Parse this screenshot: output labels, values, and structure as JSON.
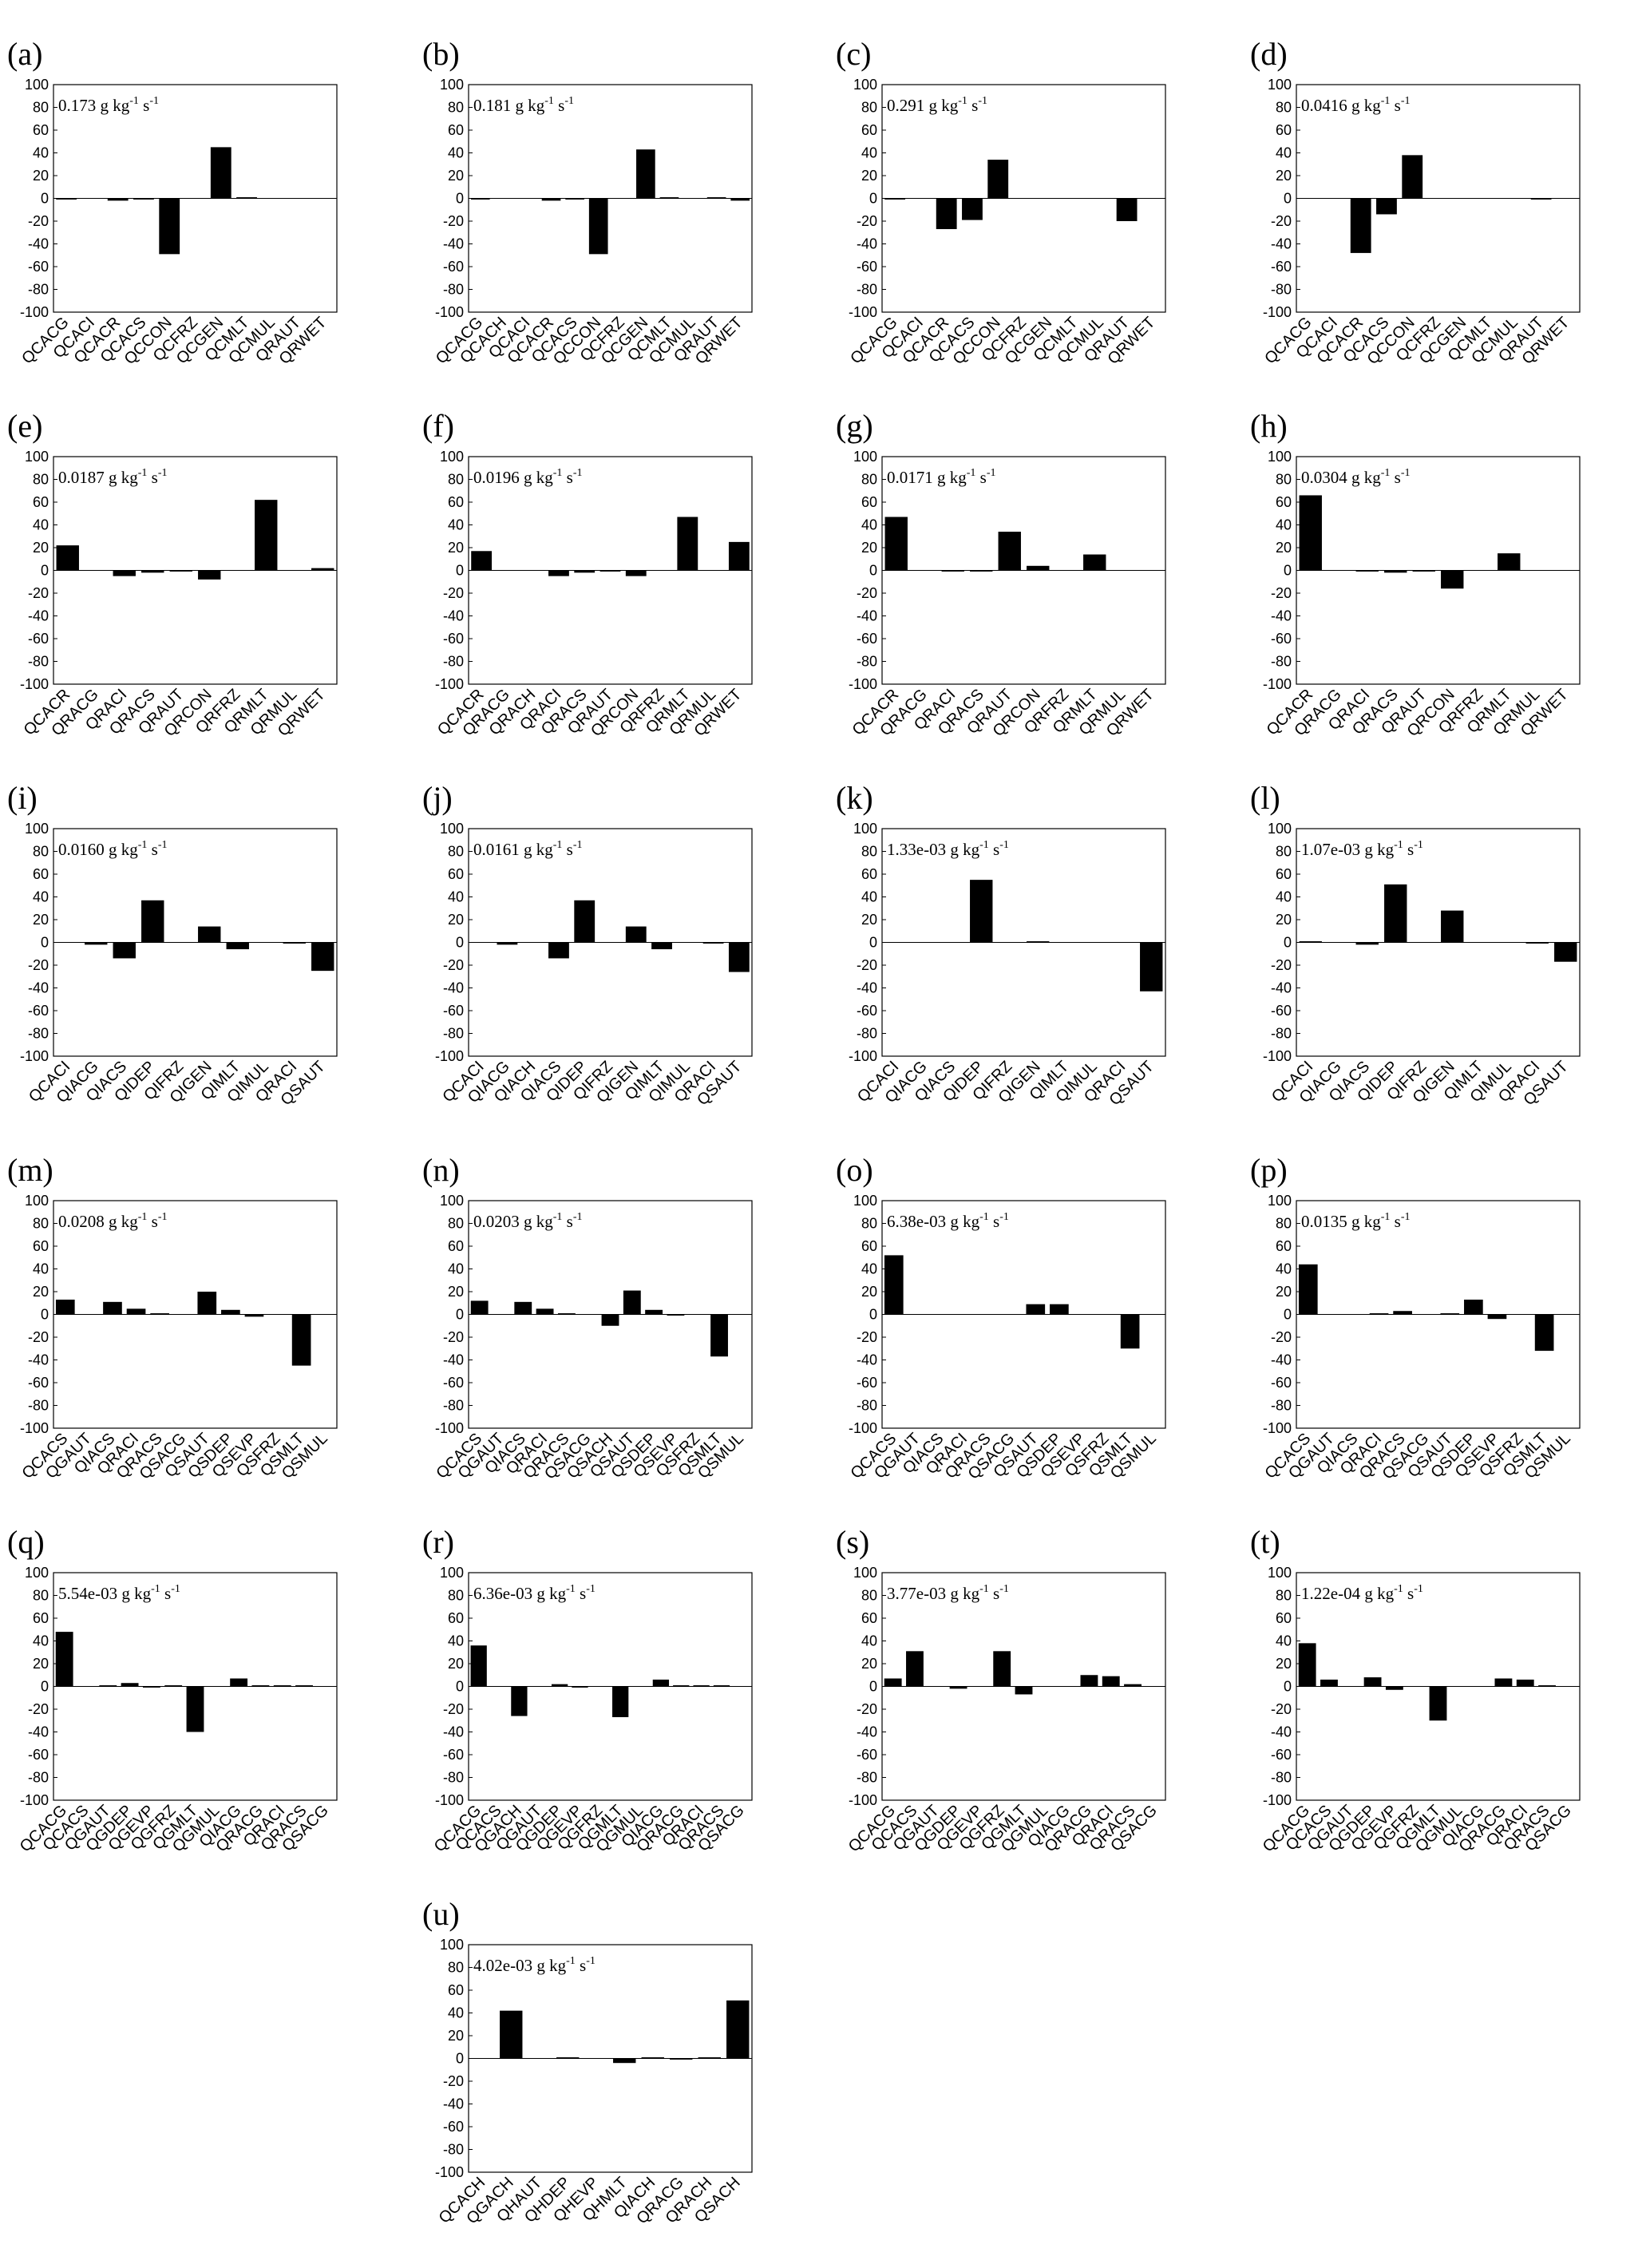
{
  "chart_data": [
    {
      "type": "bar",
      "panel": "(a)",
      "annotation": "0.173 g kg",
      "annotation_unit": "-1",
      "annotation_s": " s",
      "annotation_s_unit": "-1",
      "ylim": [
        -100,
        100
      ],
      "yticks": [
        100,
        80,
        60,
        40,
        20,
        0,
        -20,
        -40,
        -60,
        -80,
        -100
      ],
      "categories": [
        "QCACG",
        "QCACI",
        "QCACR",
        "QCACS",
        "QCCON",
        "QCFRZ",
        "QCGEN",
        "QCMLT",
        "QCMUL",
        "QRAUT",
        "QRWET"
      ],
      "values": [
        -1,
        0,
        -2,
        -1,
        -49,
        0,
        45,
        1,
        0,
        0,
        0
      ]
    },
    {
      "type": "bar",
      "panel": "(b)",
      "annotation": "0.181 g kg",
      "annotation_unit": "-1",
      "annotation_s": " s",
      "annotation_s_unit": "-1",
      "ylim": [
        -100,
        100
      ],
      "yticks": [
        100,
        80,
        60,
        40,
        20,
        0,
        -20,
        -40,
        -60,
        -80,
        -100
      ],
      "categories": [
        "QCACG",
        "QCACH",
        "QCACI",
        "QCACR",
        "QCACS",
        "QCCON",
        "QCFRZ",
        "QCGEN",
        "QCMLT",
        "QCMUL",
        "QRAUT",
        "QRWET"
      ],
      "values": [
        -1,
        0,
        0,
        -2,
        -1,
        -49,
        0,
        43,
        1,
        0,
        1,
        -2
      ]
    },
    {
      "type": "bar",
      "panel": "(c)",
      "annotation": "0.291 g kg",
      "annotation_unit": "-1",
      "annotation_s": " s",
      "annotation_s_unit": "-1",
      "ylim": [
        -100,
        100
      ],
      "yticks": [
        100,
        80,
        60,
        40,
        20,
        0,
        -20,
        -40,
        -60,
        -80,
        -100
      ],
      "categories": [
        "QCACG",
        "QCACI",
        "QCACR",
        "QCACS",
        "QCCON",
        "QCFRZ",
        "QCGEN",
        "QCMLT",
        "QCMUL",
        "QRAUT",
        "QRWET"
      ],
      "values": [
        -1,
        0,
        -27,
        -19,
        34,
        0,
        0,
        0,
        0,
        -20,
        0
      ]
    },
    {
      "type": "bar",
      "panel": "(d)",
      "annotation": "0.0416 g kg",
      "annotation_unit": "-1",
      "annotation_s": " s",
      "annotation_s_unit": "-1",
      "ylim": [
        -100,
        100
      ],
      "yticks": [
        100,
        80,
        60,
        40,
        20,
        0,
        -20,
        -40,
        -60,
        -80,
        -100
      ],
      "categories": [
        "QCACG",
        "QCACI",
        "QCACR",
        "QCACS",
        "QCCON",
        "QCFRZ",
        "QCGEN",
        "QCMLT",
        "QCMUL",
        "QRAUT",
        "QRWET"
      ],
      "values": [
        0,
        0,
        -48,
        -14,
        38,
        0,
        0,
        0,
        0,
        -1,
        0
      ]
    },
    {
      "type": "bar",
      "panel": "(e)",
      "annotation": "0.0187 g kg",
      "annotation_unit": "-1",
      "annotation_s": " s",
      "annotation_s_unit": "-1",
      "ylim": [
        -100,
        100
      ],
      "yticks": [
        100,
        80,
        60,
        40,
        20,
        0,
        -20,
        -40,
        -60,
        -80,
        -100
      ],
      "categories": [
        "QCACR",
        "QRACG",
        "QRACI",
        "QRACS",
        "QRAUT",
        "QRCON",
        "QRFRZ",
        "QRMLT",
        "QRMUL",
        "QRWET"
      ],
      "values": [
        22,
        0,
        -5,
        -2,
        -1,
        -8,
        0,
        62,
        0,
        2
      ]
    },
    {
      "type": "bar",
      "panel": "(f)",
      "annotation": "0.0196 g kg",
      "annotation_unit": "-1",
      "annotation_s": " s",
      "annotation_s_unit": "-1",
      "ylim": [
        -100,
        100
      ],
      "yticks": [
        100,
        80,
        60,
        40,
        20,
        0,
        -20,
        -40,
        -60,
        -80,
        -100
      ],
      "categories": [
        "QCACR",
        "QRACG",
        "QRACH",
        "QRACI",
        "QRACS",
        "QRAUT",
        "QRCON",
        "QRFRZ",
        "QRMLT",
        "QRMUL",
        "QRWET"
      ],
      "values": [
        17,
        0,
        0,
        -5,
        -2,
        -1,
        -5,
        0,
        47,
        0,
        25
      ]
    },
    {
      "type": "bar",
      "panel": "(g)",
      "annotation": "0.0171 g kg",
      "annotation_unit": "-1",
      "annotation_s": " s",
      "annotation_s_unit": "-1",
      "ylim": [
        -100,
        100
      ],
      "yticks": [
        100,
        80,
        60,
        40,
        20,
        0,
        -20,
        -40,
        -60,
        -80,
        -100
      ],
      "categories": [
        "QCACR",
        "QRACG",
        "QRACI",
        "QRACS",
        "QRAUT",
        "QRCON",
        "QRFRZ",
        "QRMLT",
        "QRMUL",
        "QRWET"
      ],
      "values": [
        47,
        0,
        -1,
        -1,
        34,
        4,
        0,
        14,
        0,
        0
      ]
    },
    {
      "type": "bar",
      "panel": "(h)",
      "annotation": "0.0304 g kg",
      "annotation_unit": "-1",
      "annotation_s": " s",
      "annotation_s_unit": "-1",
      "ylim": [
        -100,
        100
      ],
      "yticks": [
        100,
        80,
        60,
        40,
        20,
        0,
        -20,
        -40,
        -60,
        -80,
        -100
      ],
      "categories": [
        "QCACR",
        "QRACG",
        "QRACI",
        "QRACS",
        "QRAUT",
        "QRCON",
        "QRFRZ",
        "QRMLT",
        "QRMUL",
        "QRWET"
      ],
      "values": [
        66,
        0,
        -1,
        -2,
        -1,
        -16,
        0,
        15,
        0,
        0
      ]
    },
    {
      "type": "bar",
      "panel": "(i)",
      "annotation": "0.0160 g kg",
      "annotation_unit": "-1",
      "annotation_s": " s",
      "annotation_s_unit": "-1",
      "ylim": [
        -100,
        100
      ],
      "yticks": [
        100,
        80,
        60,
        40,
        20,
        0,
        -20,
        -40,
        -60,
        -80,
        -100
      ],
      "categories": [
        "QCACI",
        "QIACG",
        "QIACS",
        "QIDEP",
        "QIFRZ",
        "QIGEN",
        "QIMLT",
        "QIMUL",
        "QRACI",
        "QSAUT"
      ],
      "values": [
        0,
        -2,
        -14,
        37,
        0,
        14,
        -6,
        0,
        -1,
        -25
      ]
    },
    {
      "type": "bar",
      "panel": "(j)",
      "annotation": "0.0161 g kg",
      "annotation_unit": "-1",
      "annotation_s": " s",
      "annotation_s_unit": "-1",
      "ylim": [
        -100,
        100
      ],
      "yticks": [
        100,
        80,
        60,
        40,
        20,
        0,
        -20,
        -40,
        -60,
        -80,
        -100
      ],
      "categories": [
        "QCACI",
        "QIACG",
        "QIACH",
        "QIACS",
        "QIDEP",
        "QIFRZ",
        "QIGEN",
        "QIMLT",
        "QIMUL",
        "QRACI",
        "QSAUT"
      ],
      "values": [
        0,
        -2,
        0,
        -14,
        37,
        0,
        14,
        -6,
        0,
        -1,
        -26
      ]
    },
    {
      "type": "bar",
      "panel": "(k)",
      "annotation": "1.33e-03 g kg",
      "annotation_unit": "-1",
      "annotation_s": " s",
      "annotation_s_unit": "-1",
      "ylim": [
        -100,
        100
      ],
      "yticks": [
        100,
        80,
        60,
        40,
        20,
        0,
        -20,
        -40,
        -60,
        -80,
        -100
      ],
      "categories": [
        "QCACI",
        "QIACG",
        "QIACS",
        "QIDEP",
        "QIFRZ",
        "QIGEN",
        "QIMLT",
        "QIMUL",
        "QRACI",
        "QSAUT"
      ],
      "values": [
        0,
        0,
        0,
        55,
        0,
        1,
        0,
        0,
        0,
        -43
      ]
    },
    {
      "type": "bar",
      "panel": "(l)",
      "annotation": "1.07e-03 g kg",
      "annotation_unit": "-1",
      "annotation_s": " s",
      "annotation_s_unit": "-1",
      "ylim": [
        -100,
        100
      ],
      "yticks": [
        100,
        80,
        60,
        40,
        20,
        0,
        -20,
        -40,
        -60,
        -80,
        -100
      ],
      "categories": [
        "QCACI",
        "QIACG",
        "QIACS",
        "QIDEP",
        "QIFRZ",
        "QIGEN",
        "QIMLT",
        "QIMUL",
        "QRACI",
        "QSAUT"
      ],
      "values": [
        1,
        0,
        -2,
        51,
        0,
        28,
        0,
        0,
        -1,
        -17
      ]
    },
    {
      "type": "bar",
      "panel": "(m)",
      "annotation": "0.0208 g kg",
      "annotation_unit": "-1",
      "annotation_s": " s",
      "annotation_s_unit": "-1",
      "ylim": [
        -100,
        100
      ],
      "yticks": [
        100,
        80,
        60,
        40,
        20,
        0,
        -20,
        -40,
        -60,
        -80,
        -100
      ],
      "categories": [
        "QCACS",
        "QGAUT",
        "QIACS",
        "QRACI",
        "QRACS",
        "QSACG",
        "QSAUT",
        "QSDEP",
        "QSEVP",
        "QSFRZ",
        "QSMLT",
        "QSMUL"
      ],
      "values": [
        13,
        0,
        11,
        5,
        1,
        0,
        20,
        4,
        -2,
        0,
        -45,
        0
      ]
    },
    {
      "type": "bar",
      "panel": "(n)",
      "annotation": "0.0203 g kg",
      "annotation_unit": "-1",
      "annotation_s": " s",
      "annotation_s_unit": "-1",
      "ylim": [
        -100,
        100
      ],
      "yticks": [
        100,
        80,
        60,
        40,
        20,
        0,
        -20,
        -40,
        -60,
        -80,
        -100
      ],
      "categories": [
        "QCACS",
        "QGAUT",
        "QIACS",
        "QRACI",
        "QRACS",
        "QSACG",
        "QSACH",
        "QSAUT",
        "QSDEP",
        "QSEVP",
        "QSFRZ",
        "QSMLT",
        "QSMUL"
      ],
      "values": [
        12,
        0,
        11,
        5,
        1,
        0,
        -10,
        21,
        4,
        -1,
        0,
        -37,
        0
      ]
    },
    {
      "type": "bar",
      "panel": "(o)",
      "annotation": "6.38e-03 g kg",
      "annotation_unit": "-1",
      "annotation_s": " s",
      "annotation_s_unit": "-1",
      "ylim": [
        -100,
        100
      ],
      "yticks": [
        100,
        80,
        60,
        40,
        20,
        0,
        -20,
        -40,
        -60,
        -80,
        -100
      ],
      "categories": [
        "QCACS",
        "QGAUT",
        "QIACS",
        "QRACI",
        "QRACS",
        "QSACG",
        "QSAUT",
        "QSDEP",
        "QSEVP",
        "QSFRZ",
        "QSMLT",
        "QSMUL"
      ],
      "values": [
        52,
        0,
        0,
        0,
        0,
        0,
        9,
        9,
        0,
        0,
        -30,
        0
      ]
    },
    {
      "type": "bar",
      "panel": "(p)",
      "annotation": "0.0135 g kg",
      "annotation_unit": "-1",
      "annotation_s": " s",
      "annotation_s_unit": "-1",
      "ylim": [
        -100,
        100
      ],
      "yticks": [
        100,
        80,
        60,
        40,
        20,
        0,
        -20,
        -40,
        -60,
        -80,
        -100
      ],
      "categories": [
        "QCACS",
        "QGAUT",
        "QIACS",
        "QRACI",
        "QRACS",
        "QSACG",
        "QSAUT",
        "QSDEP",
        "QSEVP",
        "QSFRZ",
        "QSMLT",
        "QSMUL"
      ],
      "values": [
        44,
        0,
        0,
        1,
        3,
        0,
        1,
        13,
        -4,
        0,
        -32,
        0
      ]
    },
    {
      "type": "bar",
      "panel": "(q)",
      "annotation": "5.54e-03 g kg",
      "annotation_unit": "-1",
      "annotation_s": " s",
      "annotation_s_unit": "-1",
      "ylim": [
        -100,
        100
      ],
      "yticks": [
        100,
        80,
        60,
        40,
        20,
        0,
        -20,
        -40,
        -60,
        -80,
        -100
      ],
      "categories": [
        "QCACG",
        "QCACS",
        "QGAUT",
        "QGDEP",
        "QGEVP",
        "QGFRZ",
        "QGMLT",
        "QGMUL",
        "QIACG",
        "QRACG",
        "QRACI",
        "QRACS",
        "QSACG"
      ],
      "values": [
        48,
        0,
        1,
        3,
        -1,
        1,
        -40,
        0,
        7,
        1,
        1,
        1,
        0
      ]
    },
    {
      "type": "bar",
      "panel": "(r)",
      "annotation": "6.36e-03 g kg",
      "annotation_unit": "-1",
      "annotation_s": " s",
      "annotation_s_unit": "-1",
      "ylim": [
        -100,
        100
      ],
      "yticks": [
        100,
        80,
        60,
        40,
        20,
        0,
        -20,
        -40,
        -60,
        -80,
        -100
      ],
      "categories": [
        "QCACG",
        "QCACS",
        "QGACH",
        "QGAUT",
        "QGDEP",
        "QGEVP",
        "QGFRZ",
        "QGMLT",
        "QGMUL",
        "QIACG",
        "QRACG",
        "QRACI",
        "QRACS",
        "QSACG"
      ],
      "values": [
        36,
        0,
        -26,
        0,
        2,
        -1,
        0,
        -27,
        0,
        6,
        1,
        1,
        1,
        0
      ]
    },
    {
      "type": "bar",
      "panel": "(s)",
      "annotation": "3.77e-03 g kg",
      "annotation_unit": "-1",
      "annotation_s": " s",
      "annotation_s_unit": "-1",
      "ylim": [
        -100,
        100
      ],
      "yticks": [
        100,
        80,
        60,
        40,
        20,
        0,
        -20,
        -40,
        -60,
        -80,
        -100
      ],
      "categories": [
        "QCACG",
        "QCACS",
        "QGAUT",
        "QGDEP",
        "QGEVP",
        "QGFRZ",
        "QGMLT",
        "QGMUL",
        "QIACG",
        "QRACG",
        "QRACI",
        "QRACS",
        "QSACG"
      ],
      "values": [
        7,
        31,
        0,
        -2,
        0,
        31,
        -7,
        0,
        0,
        10,
        9,
        2,
        0
      ]
    },
    {
      "type": "bar",
      "panel": "(t)",
      "annotation": "1.22e-04 g kg",
      "annotation_unit": "-1",
      "annotation_s": " s",
      "annotation_s_unit": "-1",
      "ylim": [
        -100,
        100
      ],
      "yticks": [
        100,
        80,
        60,
        40,
        20,
        0,
        -20,
        -40,
        -60,
        -80,
        -100
      ],
      "categories": [
        "QCACG",
        "QCACS",
        "QGAUT",
        "QGDEP",
        "QGEVP",
        "QGFRZ",
        "QGMLT",
        "QGMUL",
        "QIACG",
        "QRACG",
        "QRACI",
        "QRACS",
        "QSACG"
      ],
      "values": [
        38,
        6,
        0,
        8,
        -3,
        0,
        -30,
        0,
        0,
        7,
        6,
        1,
        0
      ]
    },
    {
      "type": "bar",
      "panel": "(u)",
      "annotation": "4.02e-03 g kg",
      "annotation_unit": "-1",
      "annotation_s": " s",
      "annotation_s_unit": "-1",
      "ylim": [
        -100,
        100
      ],
      "yticks": [
        100,
        80,
        60,
        40,
        20,
        0,
        -20,
        -40,
        -60,
        -80,
        -100
      ],
      "categories": [
        "QCACH",
        "QGACH",
        "QHAUT",
        "QHDEP",
        "QHEVP",
        "QHMLT",
        "QIACH",
        "QRACG",
        "QRACH",
        "QSACH"
      ],
      "values": [
        0,
        42,
        0,
        1,
        0,
        -4,
        1,
        -1,
        1,
        51
      ]
    }
  ]
}
